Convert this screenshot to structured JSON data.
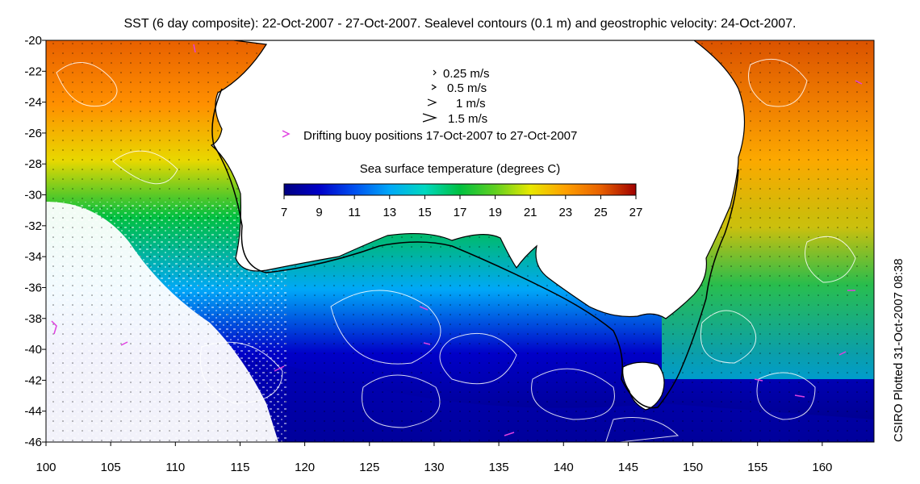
{
  "title": "SST (6 day composite): 22-Oct-2007 - 27-Oct-2007. Sealevel contours (0.1 m) and geostrophic velocity: 24-Oct-2007.",
  "side_label": "CSIRO Plotted 31-Oct-2007 08:38",
  "legend": {
    "velocity_items": [
      {
        "label": "0.25 m/s"
      },
      {
        "label": "0.5 m/s"
      },
      {
        "label": "1 m/s"
      },
      {
        "label": "1.5 m/s"
      }
    ],
    "buoy_label": "Drifting buoy positions 17-Oct-2007 to 27-Oct-2007",
    "buoy_color": "#e040e0"
  },
  "colorbar": {
    "title": "Sea surface temperature (degrees C)",
    "min": 7,
    "max": 27,
    "ticks": [
      "7",
      "9",
      "11",
      "13",
      "15",
      "17",
      "19",
      "21",
      "23",
      "25",
      "27"
    ],
    "stops": [
      "#000080",
      "#0000c8",
      "#0050f0",
      "#00a8f8",
      "#00d8c0",
      "#00c040",
      "#60d020",
      "#e8e800",
      "#ffa000",
      "#e86000",
      "#a00000"
    ]
  },
  "map": {
    "lon_range": [
      100,
      164
    ],
    "lat_range": [
      -46,
      -20
    ],
    "x_ticks": [
      "100",
      "105",
      "110",
      "115",
      "120",
      "125",
      "130",
      "135",
      "140",
      "145",
      "150",
      "155",
      "160"
    ],
    "y_ticks": [
      "-20",
      "-22",
      "-24",
      "-26",
      "-28",
      "-30",
      "-32",
      "-34",
      "-36",
      "-38",
      "-40",
      "-42",
      "-44",
      "-46"
    ],
    "land_color": "#ffffff",
    "contour_color": "#ffffff",
    "shelf_line_color": "#000000"
  }
}
